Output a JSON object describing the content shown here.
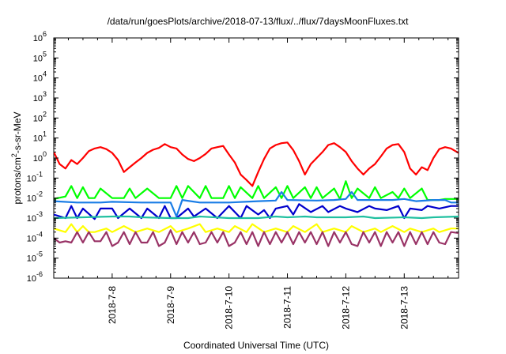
{
  "chart_data": {
    "type": "line",
    "title": "/data/run/goesPlots/archive/2018-07-13/flux/../flux/7daysMoonFluxes.txt",
    "xlabel": "Coordinated Universal Time (UTC)",
    "ylabel_parts": [
      "protons/cm",
      "2",
      "-s-sr-MeV"
    ],
    "yscale": "log",
    "ylim_exp": [
      -6,
      6
    ],
    "y_ticks": [
      {
        "base": "10",
        "exp": "6"
      },
      {
        "base": "10",
        "exp": "5"
      },
      {
        "base": "10",
        "exp": "4"
      },
      {
        "base": "10",
        "exp": "3"
      },
      {
        "base": "10",
        "exp": "2"
      },
      {
        "base": "10",
        "exp": "1"
      },
      {
        "base": "10",
        "exp": "0"
      },
      {
        "base": "10",
        "exp": "-1"
      },
      {
        "base": "10",
        "exp": "-2"
      },
      {
        "base": "10",
        "exp": "-3"
      },
      {
        "base": "10",
        "exp": "-4"
      },
      {
        "base": "10",
        "exp": "-5"
      },
      {
        "base": "10",
        "exp": "-6"
      }
    ],
    "xlim_days": [
      0,
      6.93
    ],
    "x_ticks": [
      "2018-7-8",
      "2018-7-9",
      "2018-7-10",
      "2018-7-11",
      "2018-7-12",
      "2018-7-13"
    ],
    "x_tick_days": [
      1,
      2,
      3,
      4,
      5,
      6
    ],
    "grid": false,
    "series": [
      {
        "color": "#ff0000",
        "day": [
          0,
          0.1,
          0.2,
          0.3,
          0.4,
          0.5,
          0.6,
          0.7,
          0.8,
          0.9,
          1.0,
          1.1,
          1.2,
          1.3,
          1.4,
          1.5,
          1.6,
          1.7,
          1.8,
          1.9,
          2.0,
          2.1,
          2.2,
          2.3,
          2.4,
          2.5,
          2.6,
          2.7,
          2.8,
          2.9,
          3.0,
          3.1,
          3.2,
          3.3,
          3.4,
          3.5,
          3.6,
          3.7,
          3.8,
          3.9,
          4.0,
          4.1,
          4.2,
          4.3,
          4.4,
          4.5,
          4.6,
          4.7,
          4.8,
          4.9,
          5.0,
          5.1,
          5.2,
          5.3,
          5.4,
          5.5,
          5.6,
          5.7,
          5.8,
          5.9,
          6.0,
          6.1,
          6.2,
          6.3,
          6.4,
          6.5,
          6.6,
          6.7,
          6.8,
          6.93
        ],
        "values": [
          2.0,
          0.5,
          0.3,
          0.8,
          0.5,
          1.0,
          2.2,
          3.0,
          3.5,
          2.8,
          1.8,
          0.8,
          0.2,
          0.35,
          0.6,
          1.0,
          1.8,
          2.6,
          3.2,
          5.0,
          3.5,
          3.0,
          1.5,
          0.9,
          0.7,
          1.0,
          1.6,
          3.0,
          3.5,
          4.0,
          1.5,
          0.6,
          0.15,
          0.08,
          0.04,
          0.2,
          0.9,
          3.0,
          4.5,
          5.5,
          6.0,
          2.5,
          0.7,
          0.15,
          0.5,
          1.0,
          2.0,
          4.5,
          5.5,
          3.5,
          2.0,
          0.7,
          0.3,
          0.15,
          0.3,
          0.5,
          1.2,
          3.0,
          4.5,
          5.0,
          2.0,
          0.3,
          0.15,
          0.35,
          0.25,
          1.0,
          2.8,
          3.5,
          3.0,
          1.8
        ]
      },
      {
        "color": "#00ff00",
        "day": [
          0,
          0.2,
          0.3,
          0.4,
          0.5,
          0.6,
          0.7,
          0.8,
          1.0,
          1.2,
          1.3,
          1.4,
          1.6,
          1.8,
          2.0,
          2.1,
          2.2,
          2.3,
          2.5,
          2.6,
          2.7,
          2.9,
          3.0,
          3.1,
          3.2,
          3.4,
          3.5,
          3.6,
          3.8,
          3.9,
          4.0,
          4.1,
          4.3,
          4.4,
          4.5,
          4.6,
          4.8,
          4.9,
          5.0,
          5.1,
          5.2,
          5.4,
          5.5,
          5.6,
          5.8,
          5.9,
          6.0,
          6.1,
          6.3,
          6.4,
          6.6,
          6.7,
          6.93
        ],
        "values": [
          0.009,
          0.012,
          0.04,
          0.01,
          0.035,
          0.01,
          0.01,
          0.03,
          0.01,
          0.01,
          0.03,
          0.01,
          0.03,
          0.01,
          0.01,
          0.04,
          0.01,
          0.04,
          0.01,
          0.04,
          0.01,
          0.01,
          0.04,
          0.01,
          0.035,
          0.01,
          0.04,
          0.01,
          0.035,
          0.01,
          0.04,
          0.01,
          0.035,
          0.01,
          0.035,
          0.01,
          0.03,
          0.009,
          0.07,
          0.01,
          0.03,
          0.01,
          0.035,
          0.01,
          0.02,
          0.01,
          0.03,
          0.01,
          0.03,
          0.008,
          0.008,
          0.009,
          0.009
        ]
      },
      {
        "color": "#1a7de6",
        "day": [
          0,
          0.4,
          0.8,
          1.0,
          1.5,
          2.0,
          2.1,
          2.2,
          2.5,
          3.0,
          3.5,
          3.8,
          3.9,
          4.0,
          4.5,
          4.8,
          5.0,
          5.1,
          5.2,
          5.5,
          5.8,
          6.0,
          6.2,
          6.5,
          6.7,
          6.8,
          6.93
        ],
        "values": [
          0.007,
          0.006,
          0.006,
          0.0065,
          0.006,
          0.006,
          0.0012,
          0.008,
          0.006,
          0.006,
          0.007,
          0.0075,
          0.02,
          0.008,
          0.0075,
          0.008,
          0.009,
          0.02,
          0.008,
          0.008,
          0.008,
          0.009,
          0.007,
          0.008,
          0.008,
          0.006,
          0.006
        ]
      },
      {
        "color": "#0000cc",
        "day": [
          0,
          0.2,
          0.3,
          0.4,
          0.5,
          0.7,
          0.8,
          1.0,
          1.1,
          1.3,
          1.5,
          1.6,
          1.8,
          1.9,
          2.0,
          2.1,
          2.3,
          2.4,
          2.6,
          2.8,
          3.0,
          3.2,
          3.3,
          3.5,
          3.6,
          3.7,
          3.8,
          4.0,
          4.1,
          4.2,
          4.4,
          4.6,
          4.7,
          4.9,
          5.0,
          5.2,
          5.4,
          5.5,
          5.7,
          5.9,
          6.0,
          6.1,
          6.3,
          6.4,
          6.6,
          6.8,
          6.93
        ],
        "values": [
          0.0015,
          0.001,
          0.004,
          0.001,
          0.003,
          0.0009,
          0.003,
          0.003,
          0.001,
          0.003,
          0.001,
          0.003,
          0.001,
          0.004,
          0.001,
          0.001,
          0.003,
          0.0012,
          0.003,
          0.001,
          0.004,
          0.001,
          0.004,
          0.0015,
          0.0025,
          0.001,
          0.003,
          0.004,
          0.0015,
          0.005,
          0.002,
          0.004,
          0.002,
          0.004,
          0.003,
          0.002,
          0.004,
          0.003,
          0.0025,
          0.004,
          0.001,
          0.003,
          0.0025,
          0.004,
          0.003,
          0.004,
          0.004
        ]
      },
      {
        "color": "#20c0a0",
        "day": [
          0,
          0.5,
          1.0,
          1.3,
          1.5,
          2.0,
          2.3,
          2.5,
          3.0,
          3.5,
          3.8,
          4.0,
          4.3,
          4.5,
          5.0,
          5.3,
          5.5,
          6.0,
          6.3,
          6.5,
          6.93
        ],
        "values": [
          0.001,
          0.0011,
          0.0012,
          0.0012,
          0.0011,
          0.001,
          0.001,
          0.0012,
          0.001,
          0.001,
          0.0012,
          0.0011,
          0.0012,
          0.0011,
          0.0011,
          0.0012,
          0.001,
          0.0011,
          0.001,
          0.0011,
          0.0012
        ]
      },
      {
        "color": "#ffff00",
        "day": [
          0,
          0.2,
          0.3,
          0.4,
          0.5,
          0.6,
          0.7,
          0.9,
          1.0,
          1.2,
          1.4,
          1.6,
          1.8,
          2.0,
          2.1,
          2.3,
          2.5,
          2.6,
          2.8,
          3.0,
          3.1,
          3.3,
          3.4,
          3.6,
          3.8,
          4.0,
          4.1,
          4.3,
          4.5,
          4.6,
          4.8,
          5.0,
          5.1,
          5.3,
          5.5,
          5.6,
          5.8,
          6.0,
          6.1,
          6.3,
          6.5,
          6.6,
          6.8,
          6.93
        ],
        "values": [
          0.0003,
          0.0002,
          0.0005,
          0.0002,
          0.0004,
          0.0002,
          0.0002,
          0.0003,
          0.0002,
          0.0004,
          0.0002,
          0.0003,
          0.0002,
          0.0004,
          0.0002,
          0.0003,
          0.0005,
          0.0002,
          0.0003,
          0.0002,
          0.0004,
          0.0002,
          0.0005,
          0.0002,
          0.0003,
          0.0002,
          0.0004,
          0.0002,
          0.0005,
          0.0002,
          0.0003,
          0.0002,
          0.0004,
          0.0002,
          0.0003,
          0.0002,
          0.0004,
          0.0002,
          0.0003,
          0.0002,
          0.0003,
          0.0002,
          0.0003,
          0.0003
        ]
      },
      {
        "color": "#993366",
        "day": [
          0,
          0.1,
          0.2,
          0.3,
          0.4,
          0.5,
          0.6,
          0.7,
          0.8,
          0.9,
          1.0,
          1.1,
          1.2,
          1.3,
          1.4,
          1.5,
          1.6,
          1.7,
          1.8,
          1.9,
          2.0,
          2.1,
          2.2,
          2.3,
          2.4,
          2.5,
          2.6,
          2.7,
          2.8,
          2.9,
          3.0,
          3.1,
          3.2,
          3.3,
          3.4,
          3.5,
          3.6,
          3.7,
          3.8,
          3.9,
          4.0,
          4.1,
          4.2,
          4.3,
          4.4,
          4.5,
          4.6,
          4.7,
          4.8,
          4.9,
          5.0,
          5.1,
          5.2,
          5.3,
          5.4,
          5.5,
          5.6,
          5.7,
          5.8,
          5.9,
          6.0,
          6.1,
          6.2,
          6.3,
          6.4,
          6.5,
          6.6,
          6.7,
          6.8,
          6.93
        ],
        "values": [
          0.0001,
          6e-05,
          7e-05,
          6e-05,
          0.0002,
          6e-05,
          0.0002,
          7e-05,
          7e-05,
          0.0002,
          4e-05,
          6e-05,
          0.0002,
          5e-05,
          0.0002,
          6e-05,
          6e-05,
          0.0002,
          4e-05,
          6e-05,
          0.00025,
          5e-05,
          0.0002,
          6e-05,
          0.0002,
          5e-05,
          6e-05,
          0.0002,
          6e-05,
          0.0002,
          4e-05,
          6e-05,
          0.0002,
          5e-05,
          0.0002,
          4e-05,
          0.0002,
          5e-05,
          0.0002,
          6e-05,
          0.0002,
          5e-05,
          0.0002,
          6e-05,
          0.0002,
          5e-05,
          0.0002,
          4e-05,
          0.0002,
          6e-05,
          0.0002,
          5e-05,
          4e-05,
          0.0002,
          6e-05,
          0.0002,
          4e-05,
          0.0002,
          6e-05,
          0.0002,
          4e-05,
          0.0002,
          5e-05,
          0.0002,
          5e-05,
          0.0002,
          6e-05,
          5e-05,
          0.0002,
          0.00018
        ]
      }
    ]
  }
}
